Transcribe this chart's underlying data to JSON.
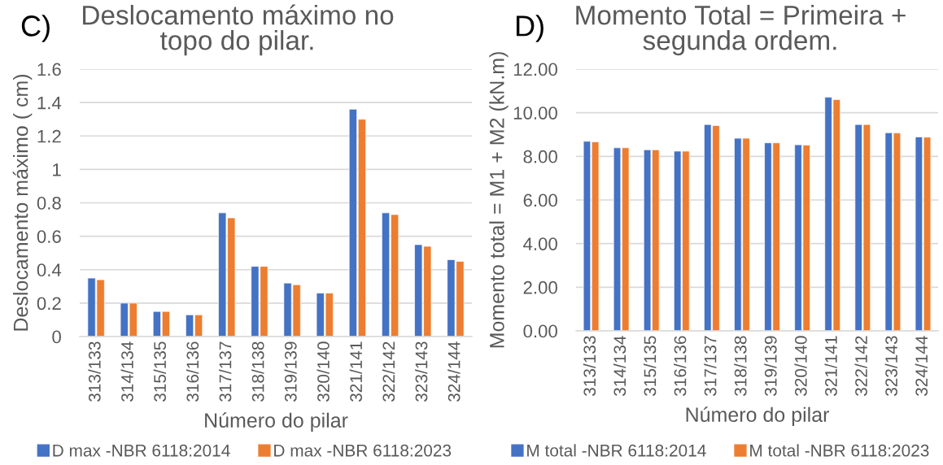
{
  "chart_data": [
    {
      "type": "bar",
      "title": "Deslocamento máximo no topo do pilar.",
      "xlabel": "Número do pilar",
      "ylabel": "Deslocamento máximo ( cm)",
      "annotations": [
        "C)"
      ],
      "categories": [
        "313/133",
        "314/134",
        "315/135",
        "316/136",
        "317/137",
        "318/138",
        "319/139",
        "320/140",
        "321/141",
        "322/142",
        "323/143",
        "324/144"
      ],
      "series": [
        {
          "name": "D max -NBR 6118:2014",
          "color": "#4472c4",
          "values": [
            0.35,
            0.2,
            0.15,
            0.13,
            0.74,
            0.42,
            0.32,
            0.26,
            1.36,
            0.74,
            0.55,
            0.46
          ]
        },
        {
          "name": "D max -NBR 6118:2023",
          "color": "#ed7d31",
          "values": [
            0.34,
            0.2,
            0.15,
            0.13,
            0.71,
            0.42,
            0.31,
            0.26,
            1.3,
            0.73,
            0.54,
            0.45
          ]
        }
      ],
      "ylim": [
        0,
        1.6
      ],
      "yticks": [
        0,
        0.2,
        0.4,
        0.6,
        0.8,
        1,
        1.2,
        1.4,
        1.6
      ],
      "grid": "y",
      "legend": "bottom"
    },
    {
      "type": "bar",
      "title": "Momento Total = Primeira + segunda ordem.",
      "xlabel": "Número do pilar",
      "ylabel": "Momento total = M1 + M2 (kN.m)",
      "annotations": [
        "D)"
      ],
      "categories": [
        "313/133",
        "314/134",
        "315/135",
        "316/136",
        "317/137",
        "318/138",
        "319/139",
        "320/140",
        "321/141",
        "322/142",
        "323/143",
        "324/144"
      ],
      "series": [
        {
          "name": "M total -NBR 6118:2014",
          "color": "#4472c4",
          "values": [
            8.69,
            8.39,
            8.3,
            8.24,
            9.46,
            8.83,
            8.62,
            8.53,
            10.71,
            9.46,
            9.08,
            8.89
          ]
        },
        {
          "name": "M total -NBR 6118:2023",
          "color": "#ed7d31",
          "values": [
            8.66,
            8.39,
            8.3,
            8.24,
            9.41,
            8.83,
            8.62,
            8.52,
            10.6,
            9.46,
            9.07,
            8.88
          ]
        }
      ],
      "ylim": [
        0,
        12
      ],
      "yticks": [
        {
          "value": 0,
          "label": "0.00"
        },
        {
          "value": 2,
          "label": "2.00"
        },
        {
          "value": 4,
          "label": "4.00"
        },
        {
          "value": 6,
          "label": "6.00"
        },
        {
          "value": 8,
          "label": "8.00"
        },
        {
          "value": 10,
          "label": "10.00"
        },
        {
          "value": 12,
          "label": "12.00"
        }
      ],
      "grid": "y",
      "legend": "bottom"
    }
  ]
}
